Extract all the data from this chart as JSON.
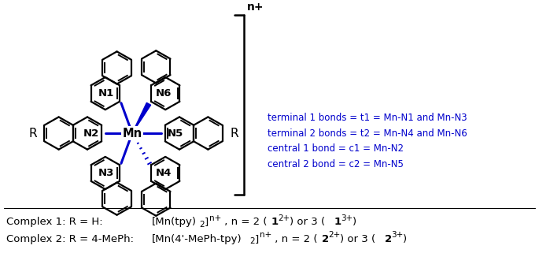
{
  "figsize": [
    6.85,
    3.21
  ],
  "dpi": 100,
  "bg_color": "#ffffff",
  "blue_color": "#0000cc",
  "black_color": "#000000",
  "blue_lines": [
    "terminal 1 bonds = t1 = Mn-N1 and Mn-N3",
    "terminal 2 bonds = t2 = Mn-N4 and Mn-N6",
    "central 1 bond = c1 = Mn-N2",
    "central 2 bond = c2 = Mn-N5"
  ],
  "bracket_n_plus": "n+"
}
